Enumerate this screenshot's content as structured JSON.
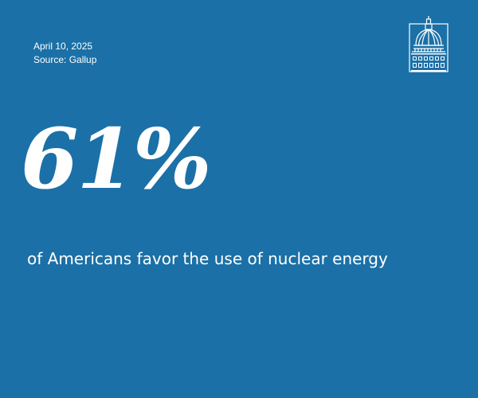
{
  "date": "April 10, 2025",
  "source": "Source: Gallup",
  "stat": {
    "value": "61%",
    "caption": "of Americans favor the use of nuclear energy"
  },
  "logo": {
    "icon": "capitol-dome-icon"
  },
  "colors": {
    "background": "#1b70a7",
    "text": "#ffffff"
  }
}
